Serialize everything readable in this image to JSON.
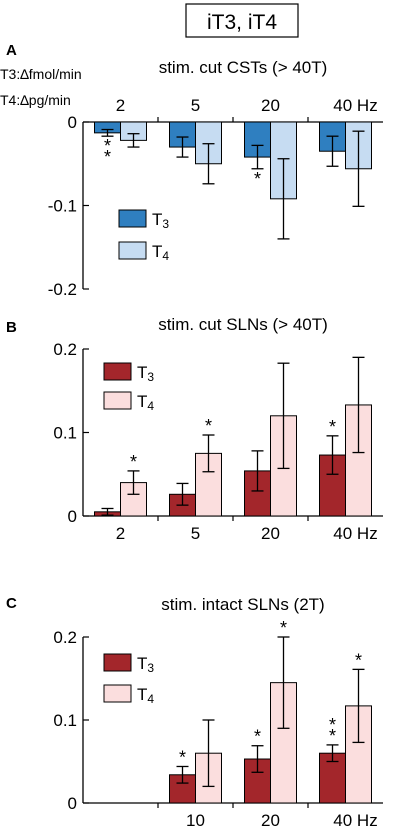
{
  "figure_title": "iT3, iT4",
  "units_note": [
    "T3:∆fmol/min",
    "T4:∆pg/min"
  ],
  "colors": {
    "A_T3": "#2f7fc0",
    "A_T4": "#c6dcf2",
    "B_T3": "#a3262b",
    "B_T4": "#fbdede",
    "stroke": "#000000"
  },
  "chart_data": [
    {
      "panel": "A",
      "type": "bar",
      "title": "stim. cut CSTs (> 40T)",
      "categories": [
        "2",
        "5",
        "20",
        "40 Hz"
      ],
      "category_axis_position": "top",
      "ylim": [
        -0.2,
        0
      ],
      "yticks": [
        0,
        -0.1,
        -0.2
      ],
      "ytick_labels": [
        "0",
        "-0.1",
        "-0.2"
      ],
      "legend_position": "left-middle",
      "series": [
        {
          "name": "T3",
          "values": [
            -0.013,
            -0.03,
            -0.042,
            -0.035
          ],
          "errors": [
            0.004,
            0.012,
            0.014,
            0.018
          ],
          "annotations": [
            "**",
            "",
            "*",
            ""
          ]
        },
        {
          "name": "T4",
          "values": [
            -0.022,
            -0.05,
            -0.092,
            -0.056
          ],
          "errors": [
            0.008,
            0.024,
            0.048,
            0.045
          ],
          "annotations": [
            "",
            "",
            "",
            ""
          ]
        }
      ]
    },
    {
      "panel": "B",
      "type": "bar",
      "title": "stim. cut SLNs (> 40T)",
      "categories": [
        "2",
        "5",
        "20",
        "40 Hz"
      ],
      "category_axis_position": "bottom",
      "ylim": [
        0,
        0.2
      ],
      "yticks": [
        0,
        0.1,
        0.2
      ],
      "ytick_labels": [
        "0",
        "0.1",
        "0.2"
      ],
      "legend_position": "top-left",
      "series": [
        {
          "name": "T3",
          "values": [
            0.005,
            0.026,
            0.054,
            0.073
          ],
          "errors": [
            0.004,
            0.013,
            0.024,
            0.023
          ],
          "annotations": [
            "",
            "",
            "",
            "*"
          ]
        },
        {
          "name": "T4",
          "values": [
            0.04,
            0.075,
            0.12,
            0.133
          ],
          "errors": [
            0.014,
            0.022,
            0.063,
            0.057
          ],
          "annotations": [
            "*",
            "*",
            "",
            ""
          ]
        }
      ]
    },
    {
      "panel": "C",
      "type": "bar",
      "title": "stim. intact SLNs (2T)",
      "categories": [
        "",
        "10",
        "20",
        "40 Hz"
      ],
      "category_axis_position": "bottom",
      "ylim": [
        0,
        0.2
      ],
      "yticks": [
        0,
        0.1,
        0.2
      ],
      "ytick_labels": [
        "0",
        "0.1",
        "0.2"
      ],
      "legend_position": "top-left",
      "series": [
        {
          "name": "T3",
          "values": [
            null,
            0.034,
            0.053,
            0.06
          ],
          "errors": [
            null,
            0.01,
            0.016,
            0.01
          ],
          "annotations": [
            "",
            "*",
            "*",
            "**"
          ]
        },
        {
          "name": "T4",
          "values": [
            null,
            0.06,
            0.145,
            0.117
          ],
          "errors": [
            null,
            0.04,
            0.055,
            0.044
          ],
          "annotations": [
            "",
            "",
            "*",
            "*"
          ]
        }
      ]
    }
  ]
}
